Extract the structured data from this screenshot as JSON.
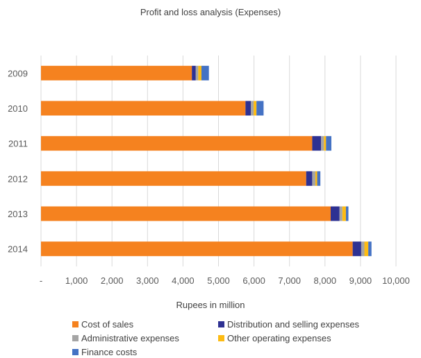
{
  "chart_data": {
    "type": "bar",
    "orientation": "horizontal",
    "stacked": true,
    "title": "Profit and loss analysis (Expenses)",
    "xlabel": "Rupees in million",
    "ylabel": "",
    "xlim": [
      0,
      10000
    ],
    "xticks": [
      0,
      1000,
      2000,
      3000,
      4000,
      5000,
      6000,
      7000,
      8000,
      9000,
      10000
    ],
    "xtick_labels": [
      "-",
      "1,000",
      "2,000",
      "3,000",
      "4,000",
      "5,000",
      "6,000",
      "7,000",
      "8,000",
      "9,000",
      "10,000"
    ],
    "categories": [
      "2009",
      "2010",
      "2011",
      "2012",
      "2013",
      "2014"
    ],
    "grid": "vertical",
    "legend_position": "bottom",
    "series": [
      {
        "name": "Cost of sales",
        "color": "#F5821F",
        "values": [
          4250,
          5760,
          7640,
          7470,
          8160,
          8780
        ]
      },
      {
        "name": "Distribution and selling expenses",
        "color": "#2E3192",
        "values": [
          110,
          150,
          250,
          170,
          250,
          240
        ]
      },
      {
        "name": "Administrative expenses",
        "color": "#A5A5A5",
        "values": [
          70,
          80,
          80,
          90,
          80,
          90
        ]
      },
      {
        "name": "Other operating expenses",
        "color": "#FDBB13",
        "values": [
          90,
          80,
          60,
          50,
          100,
          110
        ]
      },
      {
        "name": "Finance costs",
        "color": "#4472C4",
        "values": [
          210,
          200,
          150,
          90,
          70,
          90
        ]
      }
    ]
  }
}
